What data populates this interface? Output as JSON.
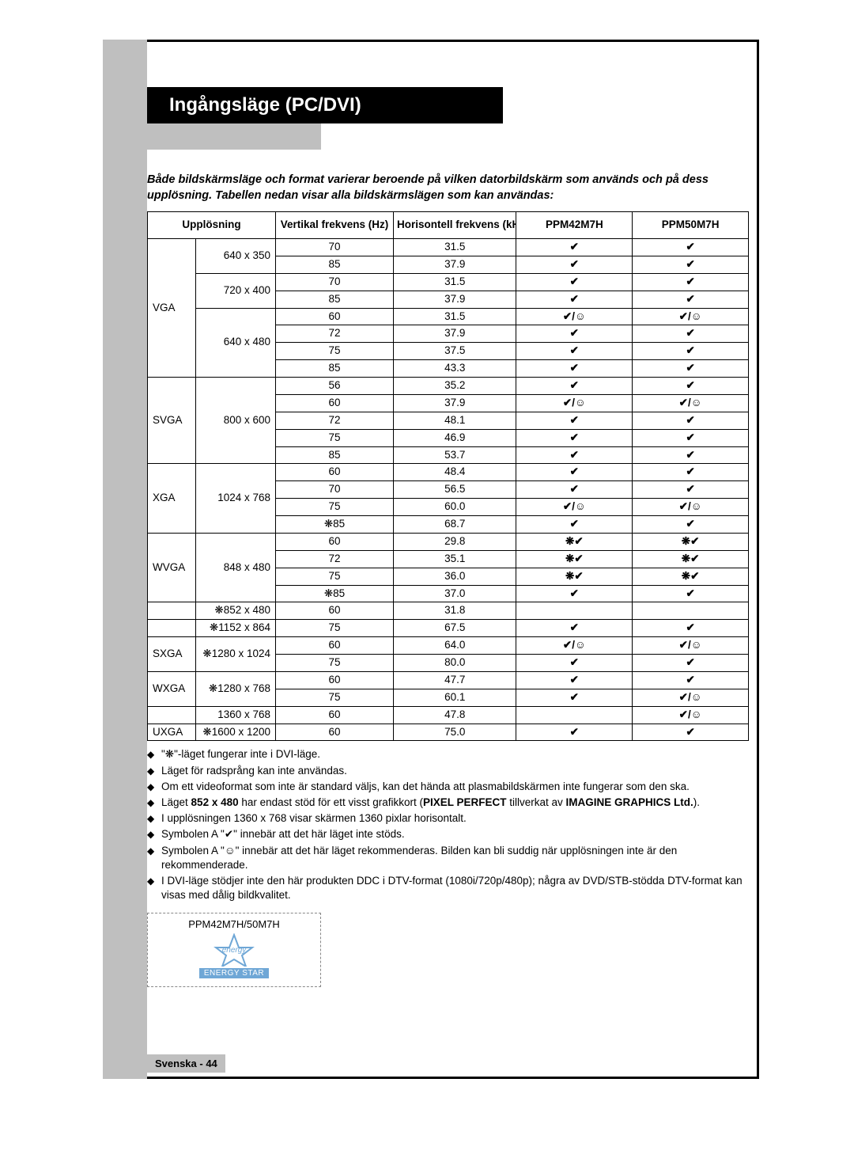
{
  "header": {
    "title": "Ingångsläge (PC/DVI)"
  },
  "intro": "Både bildskärmsläge och format varierar beroende på vilken datorbildskärm som används och på dess upplösning. Tabellen nedan visar alla bildskärmslägen som kan användas:",
  "table": {
    "headers": {
      "resolution": "Upplösning",
      "vfreq": "Vertikal frekvens (Hz)",
      "hfreq": "Horisontell frekvens (kHz)",
      "model1": "PPM42M7H",
      "model2": "PPM50M7H"
    },
    "groups": [
      {
        "type": "VGA",
        "res": "640 x 350",
        "rows": [
          {
            "vf": "70",
            "hf": "31.5",
            "m1": "✔",
            "m2": "✔"
          },
          {
            "vf": "85",
            "hf": "37.9",
            "m1": "✔",
            "m2": "✔"
          }
        ]
      },
      {
        "type": "",
        "res": "720 x 400",
        "rows": [
          {
            "vf": "70",
            "hf": "31.5",
            "m1": "✔",
            "m2": "✔"
          },
          {
            "vf": "85",
            "hf": "37.9",
            "m1": "✔",
            "m2": "✔"
          }
        ]
      },
      {
        "type": "",
        "res": "640 x 480",
        "rows": [
          {
            "vf": "60",
            "hf": "31.5",
            "m1": "✔/☺",
            "m2": "✔/☺"
          },
          {
            "vf": "72",
            "hf": "37.9",
            "m1": "✔",
            "m2": "✔"
          },
          {
            "vf": "75",
            "hf": "37.5",
            "m1": "✔",
            "m2": "✔"
          },
          {
            "vf": "85",
            "hf": "43.3",
            "m1": "✔",
            "m2": "✔"
          }
        ]
      },
      {
        "type": "SVGA",
        "res": "800 x 600",
        "rows": [
          {
            "vf": "56",
            "hf": "35.2",
            "m1": "✔",
            "m2": "✔"
          },
          {
            "vf": "60",
            "hf": "37.9",
            "m1": "✔/☺",
            "m2": "✔/☺"
          },
          {
            "vf": "72",
            "hf": "48.1",
            "m1": "✔",
            "m2": "✔"
          },
          {
            "vf": "75",
            "hf": "46.9",
            "m1": "✔",
            "m2": "✔"
          },
          {
            "vf": "85",
            "hf": "53.7",
            "m1": "✔",
            "m2": "✔"
          }
        ]
      },
      {
        "type": "XGA",
        "res": "1024 x 768",
        "rows": [
          {
            "vf": "60",
            "hf": "48.4",
            "m1": "✔",
            "m2": "✔"
          },
          {
            "vf": "70",
            "hf": "56.5",
            "m1": "✔",
            "m2": "✔"
          },
          {
            "vf": "75",
            "hf": "60.0",
            "m1": "✔/☺",
            "m2": "✔/☺"
          },
          {
            "vf": "❋85",
            "hf": "68.7",
            "m1": "✔",
            "m2": "✔"
          }
        ]
      },
      {
        "type": "WVGA",
        "res": "848 x 480",
        "rows": [
          {
            "vf": "60",
            "hf": "29.8",
            "m1": "❋✔",
            "m2": "❋✔"
          },
          {
            "vf": "72",
            "hf": "35.1",
            "m1": "❋✔",
            "m2": "❋✔"
          },
          {
            "vf": "75",
            "hf": "36.0",
            "m1": "❋✔",
            "m2": "❋✔"
          },
          {
            "vf": "❋85",
            "hf": "37.0",
            "m1": "✔",
            "m2": "✔"
          }
        ]
      },
      {
        "type": "",
        "res": "❋852 x 480",
        "rows": [
          {
            "vf": "60",
            "hf": "31.8",
            "m1": "",
            "m2": ""
          }
        ]
      },
      {
        "type": "",
        "res": "❋1152 x 864",
        "rows": [
          {
            "vf": "75",
            "hf": "67.5",
            "m1": "✔",
            "m2": "✔"
          }
        ]
      },
      {
        "type": "SXGA",
        "res": "❋1280 x 1024",
        "rows": [
          {
            "vf": "60",
            "hf": "64.0",
            "m1": "✔/☺",
            "m2": "✔/☺"
          },
          {
            "vf": "75",
            "hf": "80.0",
            "m1": "✔",
            "m2": "✔"
          }
        ]
      },
      {
        "type": "WXGA",
        "res": "❋1280 x 768",
        "rows": [
          {
            "vf": "60",
            "hf": "47.7",
            "m1": "✔",
            "m2": "✔"
          },
          {
            "vf": "75",
            "hf": "60.1",
            "m1": "✔",
            "m2": "✔/☺"
          }
        ]
      },
      {
        "type": "",
        "res": "1360 x 768",
        "rows": [
          {
            "vf": "60",
            "hf": "47.8",
            "m1": "",
            "m2": "✔/☺"
          }
        ]
      },
      {
        "type": "UXGA",
        "res": "❋1600 x 1200",
        "rows": [
          {
            "vf": "60",
            "hf": "75.0",
            "m1": "✔",
            "m2": "✔"
          }
        ]
      }
    ]
  },
  "notes": {
    "items": [
      "\"❋\"-läget fungerar inte i DVI-läge.",
      "Läget för radsprång kan inte användas.",
      "Om ett videoformat som inte är standard väljs, kan det hända att plasmabildskärmen inte fungerar som den ska.",
      "Läget <b>852 x 480</b> har endast stöd för ett visst grafikkort (<b>PIXEL PERFECT</b> tillverkat av <b>IMAGINE GRAPHICS Ltd.</b>).",
      "I upplösningen 1360 x 768 visar skärmen 1360 pixlar horisontalt.",
      "Symbolen A \"✔\" innebär att det här läget inte stöds.",
      "Symbolen A \"☺\" innebär att det här läget rekommenderas. Bilden kan bli suddig när upplösningen inte är den rekommenderade.",
      "I DVI-läge stödjer inte den här produkten DDC i DTV-format (1080i/720p/480p); några av DVD/STB-stödda DTV-format kan visas med dålig bildkvalitet."
    ]
  },
  "badge": {
    "title": "PPM42M7H/50M7H",
    "logo_text": "energy",
    "label": "ENERGY STAR",
    "star_color": "#6fa7d6"
  },
  "footer": {
    "text": "Svenska - 44"
  }
}
